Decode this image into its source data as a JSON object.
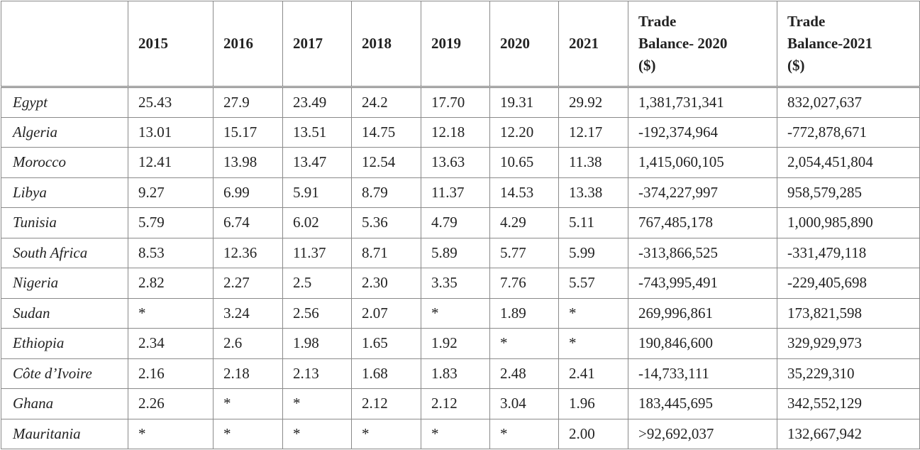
{
  "table": {
    "header": [
      "",
      "2015",
      "2016",
      "2017",
      "2018",
      "2019",
      "2020",
      "2021",
      "Trade\nBalance- 2020\n($)",
      "Trade\nBalance-2021\n($)"
    ],
    "rows": [
      [
        "Egypt",
        "25.43",
        "27.9",
        "23.49",
        "24.2",
        "17.70",
        "19.31",
        "29.92",
        "1,381,731,341",
        "832,027,637"
      ],
      [
        "Algeria",
        "13.01",
        "15.17",
        "13.51",
        "14.75",
        "12.18",
        "12.20",
        "12.17",
        "-192,374,964",
        "-772,878,671"
      ],
      [
        "Morocco",
        "12.41",
        "13.98",
        "13.47",
        "12.54",
        "13.63",
        "10.65",
        "11.38",
        "1,415,060,105",
        "2,054,451,804"
      ],
      [
        "Libya",
        "9.27",
        "6.99",
        "5.91",
        "8.79",
        "11.37",
        "14.53",
        "13.38",
        "-374,227,997",
        "958,579,285"
      ],
      [
        "Tunisia",
        "5.79",
        "6.74",
        "6.02",
        "5.36",
        "4.79",
        "4.29",
        "5.11",
        "767,485,178",
        "1,000,985,890"
      ],
      [
        "South Africa",
        "8.53",
        "12.36",
        "11.37",
        "8.71",
        "5.89",
        "5.77",
        "5.99",
        "-313,866,525",
        "-331,479,118"
      ],
      [
        "Nigeria",
        "2.82",
        "2.27",
        "2.5",
        "2.30",
        "3.35",
        "7.76",
        "5.57",
        "-743,995,491",
        "-229,405,698"
      ],
      [
        "Sudan",
        "*",
        "3.24",
        "2.56",
        "2.07",
        "*",
        "1.89",
        "*",
        "269,996,861",
        "173,821,598"
      ],
      [
        "Ethiopia",
        "2.34",
        "2.6",
        "1.98",
        "1.65",
        "1.92",
        "*",
        "*",
        "190,846,600",
        "329,929,973"
      ],
      [
        "Côte d’Ivoire",
        "2.16",
        "2.18",
        "2.13",
        "1.68",
        "1.83",
        "2.48",
        "2.41",
        "-14,733,111",
        "35,229,310"
      ],
      [
        "Ghana",
        "2.26",
        "*",
        "*",
        "2.12",
        "2.12",
        "3.04",
        "1.96",
        "183,445,695",
        "342,552,129"
      ],
      [
        "Mauritania",
        "*",
        "*",
        "*",
        "*",
        "*",
        "*",
        "2.00",
        ">92,692,037",
        "132,667,942"
      ]
    ]
  }
}
